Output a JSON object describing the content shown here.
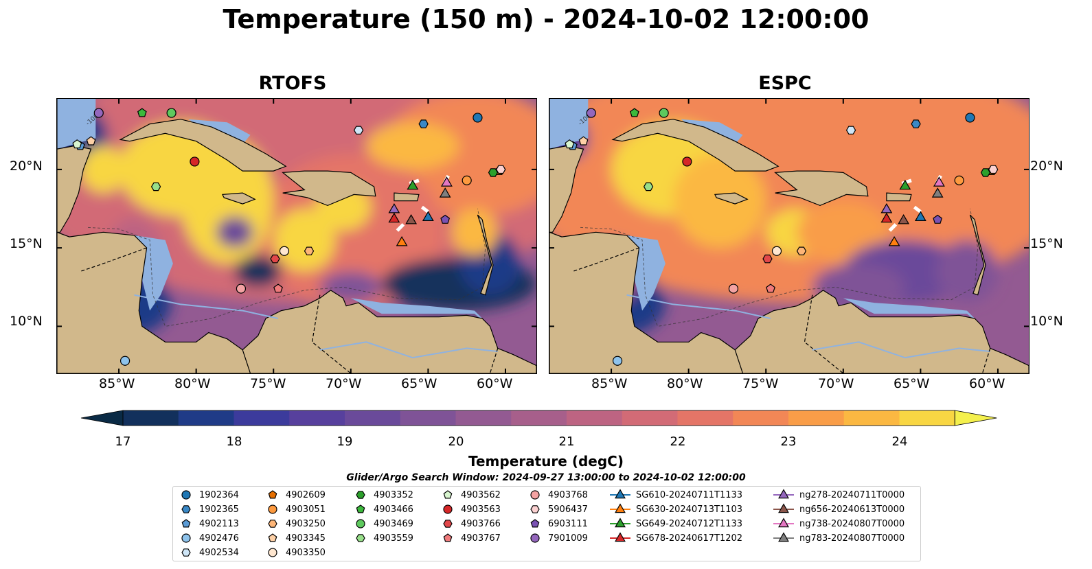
{
  "title": "Temperature (150 m) - 2024-10-02 12:00:00",
  "panels": [
    {
      "title": "RTOFS",
      "scheme": "rtofs"
    },
    {
      "title": "ESPC",
      "scheme": "espc"
    }
  ],
  "map": {
    "lon_range": [
      -89,
      -58
    ],
    "lat_range": [
      7,
      24.5
    ],
    "lat_ticks": [
      "20°N",
      "15°N",
      "10°N"
    ],
    "lon_ticks": [
      "85°W",
      "80°W",
      "75°W",
      "70°W",
      "65°W",
      "60°W"
    ],
    "land_color": "#d1b88b",
    "shelf_color": "#8fb2e0",
    "contour_label": "-1000"
  },
  "colorbar": {
    "label": "Temperature (degC)",
    "min": 17,
    "max": 24.5,
    "step": 0.5,
    "ticks": [
      "17",
      "18",
      "19",
      "20",
      "21",
      "22",
      "23",
      "24"
    ],
    "extend": "both",
    "colors": [
      "#0a2a45",
      "#12305c",
      "#1f3b87",
      "#3c3b9c",
      "#57409d",
      "#6a4a9a",
      "#7f5397",
      "#935a92",
      "#a75f8b",
      "#bd6482",
      "#d26b76",
      "#e47567",
      "#f28756",
      "#f99d48",
      "#fbb842",
      "#f8d643",
      "#f4f04d"
    ]
  },
  "search_window": "Glider/Argo Search Window: 2024-09-27 13:00:00 to 2024-10-02 12:00:00",
  "legend": {
    "columns": [
      [
        {
          "label": "1902364",
          "marker": "circle",
          "color": "#1f77b4"
        },
        {
          "label": "1902365",
          "marker": "hexagon",
          "color": "#3a88c6"
        },
        {
          "label": "4902113",
          "marker": "pentagon",
          "color": "#5b9bd5"
        },
        {
          "label": "4902476",
          "marker": "circle",
          "color": "#8ec3ec"
        },
        {
          "label": "4902534",
          "marker": "hexagon",
          "color": "#cfe6f7"
        }
      ],
      [
        {
          "label": "4902609",
          "marker": "pentagon",
          "color": "#e66f00"
        },
        {
          "label": "4903051",
          "marker": "circle",
          "color": "#fd9a3f"
        },
        {
          "label": "4903250",
          "marker": "hexagon",
          "color": "#fdb577"
        },
        {
          "label": "4903345",
          "marker": "pentagon",
          "color": "#fdd0a6"
        },
        {
          "label": "4903350",
          "marker": "circle",
          "color": "#fee6cf"
        }
      ],
      [
        {
          "label": "4903352",
          "marker": "hexagon",
          "color": "#2ca02c"
        },
        {
          "label": "4903466",
          "marker": "pentagon",
          "color": "#3cb93c"
        },
        {
          "label": "4903469",
          "marker": "circle",
          "color": "#5ec95e"
        },
        {
          "label": "4903559",
          "marker": "hexagon",
          "color": "#98df8a"
        }
      ],
      [
        {
          "label": "4903562",
          "marker": "pentagon",
          "color": "#d8f5cf"
        },
        {
          "label": "4903563",
          "marker": "circle",
          "color": "#d62728"
        },
        {
          "label": "4903766",
          "marker": "hexagon",
          "color": "#e2474a"
        },
        {
          "label": "4903767",
          "marker": "pentagon",
          "color": "#f07a7b"
        }
      ],
      [
        {
          "label": "4903768",
          "marker": "circle",
          "color": "#f4a3a3"
        },
        {
          "label": "5906437",
          "marker": "hexagon",
          "color": "#fbd1d1"
        },
        {
          "label": "6903111",
          "marker": "pentagon",
          "color": "#7a52b3"
        },
        {
          "label": "7901009",
          "marker": "circle",
          "color": "#9467bd"
        }
      ],
      [
        {
          "label": "SG610-20240711T1133",
          "marker": "triangle-line",
          "color": "#1f77b4"
        },
        {
          "label": "SG630-20240713T1103",
          "marker": "triangle-line",
          "color": "#ff7f0e"
        },
        {
          "label": "SG649-20240712T1133",
          "marker": "triangle-line",
          "color": "#2ca02c"
        },
        {
          "label": "SG678-20240617T1202",
          "marker": "triangle-line",
          "color": "#d62728"
        }
      ],
      [
        {
          "label": "ng278-20240711T0000",
          "marker": "triangle-line",
          "color": "#9467bd"
        },
        {
          "label": "ng656-20240613T0000",
          "marker": "triangle-line",
          "color": "#8c564b"
        },
        {
          "label": "ng738-20240807T0000",
          "marker": "triangle-line",
          "color": "#e377c2"
        },
        {
          "label": "ng783-20240807T0000",
          "marker": "triangle-line",
          "color": "#7f7f7f"
        }
      ]
    ]
  },
  "floats": [
    {
      "id": "1902364",
      "lon": -61.8,
      "lat": 23.3
    },
    {
      "id": "1902365",
      "lon": -65.3,
      "lat": 22.9
    },
    {
      "id": "4902113",
      "lon": -87.5,
      "lat": 21.5
    },
    {
      "id": "4902476",
      "lon": -84.6,
      "lat": 7.8
    },
    {
      "id": "4902534",
      "lon": -69.5,
      "lat": 22.5
    },
    {
      "id": "4902609",
      "lon": -60.4,
      "lat": 19.9
    },
    {
      "id": "4903051",
      "lon": -62.5,
      "lat": 19.3
    },
    {
      "id": "4903250",
      "lon": -72.7,
      "lat": 14.8
    },
    {
      "id": "4903345",
      "lon": -86.8,
      "lat": 21.8
    },
    {
      "id": "4903350",
      "lon": -74.3,
      "lat": 14.8
    },
    {
      "id": "4903352",
      "lon": -60.8,
      "lat": 19.8
    },
    {
      "id": "4903466",
      "lon": -83.5,
      "lat": 23.6
    },
    {
      "id": "4903469",
      "lon": -81.6,
      "lat": 23.6
    },
    {
      "id": "4903559",
      "lon": -82.6,
      "lat": 18.9
    },
    {
      "id": "4903562",
      "lon": -87.7,
      "lat": 21.6
    },
    {
      "id": "4903563",
      "lon": -80.1,
      "lat": 20.5
    },
    {
      "id": "4903766",
      "lon": -74.9,
      "lat": 14.3
    },
    {
      "id": "4903767",
      "lon": -74.7,
      "lat": 12.4
    },
    {
      "id": "4903768",
      "lon": -77.1,
      "lat": 12.4
    },
    {
      "id": "5906437",
      "lon": -60.3,
      "lat": 20.0
    },
    {
      "id": "6903111",
      "lon": -63.9,
      "lat": 16.8
    },
    {
      "id": "7901009",
      "lon": -86.3,
      "lat": 23.6
    }
  ],
  "gliders": [
    {
      "id": "SG610-20240711T1133",
      "lon": -65.0,
      "lat": 17.0
    },
    {
      "id": "SG630-20240713T1103",
      "lon": -66.7,
      "lat": 15.4
    },
    {
      "id": "SG649-20240712T1133",
      "lon": -66.0,
      "lat": 19.0
    },
    {
      "id": "SG678-20240617T1202",
      "lon": -67.2,
      "lat": 16.9
    },
    {
      "id": "ng278-20240711T0000",
      "lon": -67.2,
      "lat": 17.5
    },
    {
      "id": "ng656-20240613T0000",
      "lon": -66.1,
      "lat": 16.8
    },
    {
      "id": "ng738-20240807T0000",
      "lon": -63.8,
      "lat": 19.2
    },
    {
      "id": "ng783-20240807T0000",
      "lon": -63.9,
      "lat": 18.5
    }
  ]
}
